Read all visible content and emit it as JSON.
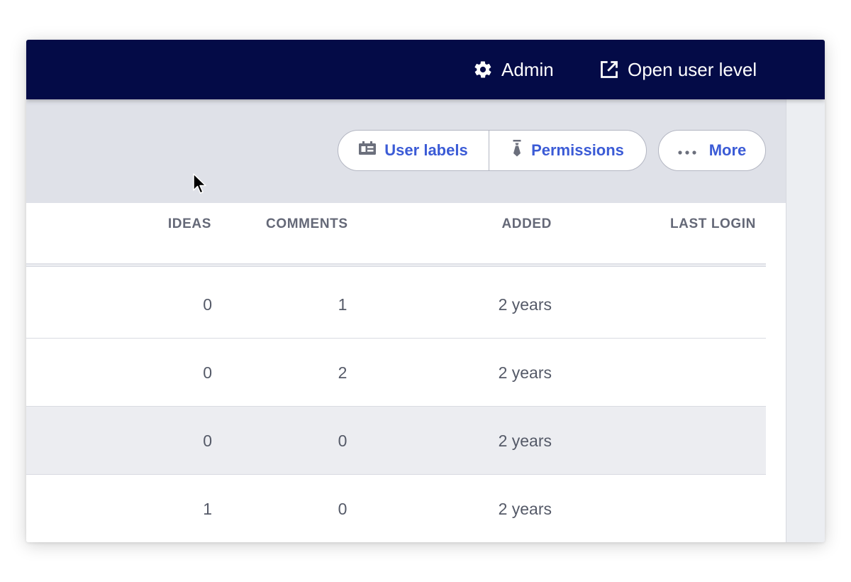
{
  "topbar": {
    "admin_icon": "gear-icon",
    "admin_label": "Admin",
    "open_user_icon": "external-link-icon",
    "open_user_label": "Open user level",
    "background": "#040b47"
  },
  "toolbar": {
    "user_labels_icon": "label-badge-icon",
    "user_labels": "User labels",
    "permissions_icon": "tie-icon",
    "permissions": "Permissions",
    "more_icon": "ellipsis-icon",
    "more": "More",
    "accent": "#3b5bd6"
  },
  "table": {
    "columns": [
      "IDEAS",
      "COMMENTS",
      "ADDED",
      "LAST LOGIN"
    ],
    "rows": [
      {
        "ideas": "0",
        "comments": "1",
        "added": "2 years",
        "last_login": ""
      },
      {
        "ideas": "0",
        "comments": "2",
        "added": "2 years",
        "last_login": ""
      },
      {
        "ideas": "0",
        "comments": "0",
        "added": "2 years",
        "last_login": ""
      },
      {
        "ideas": "1",
        "comments": "0",
        "added": "2 years",
        "last_login": ""
      }
    ],
    "shaded_row_index": 2
  }
}
